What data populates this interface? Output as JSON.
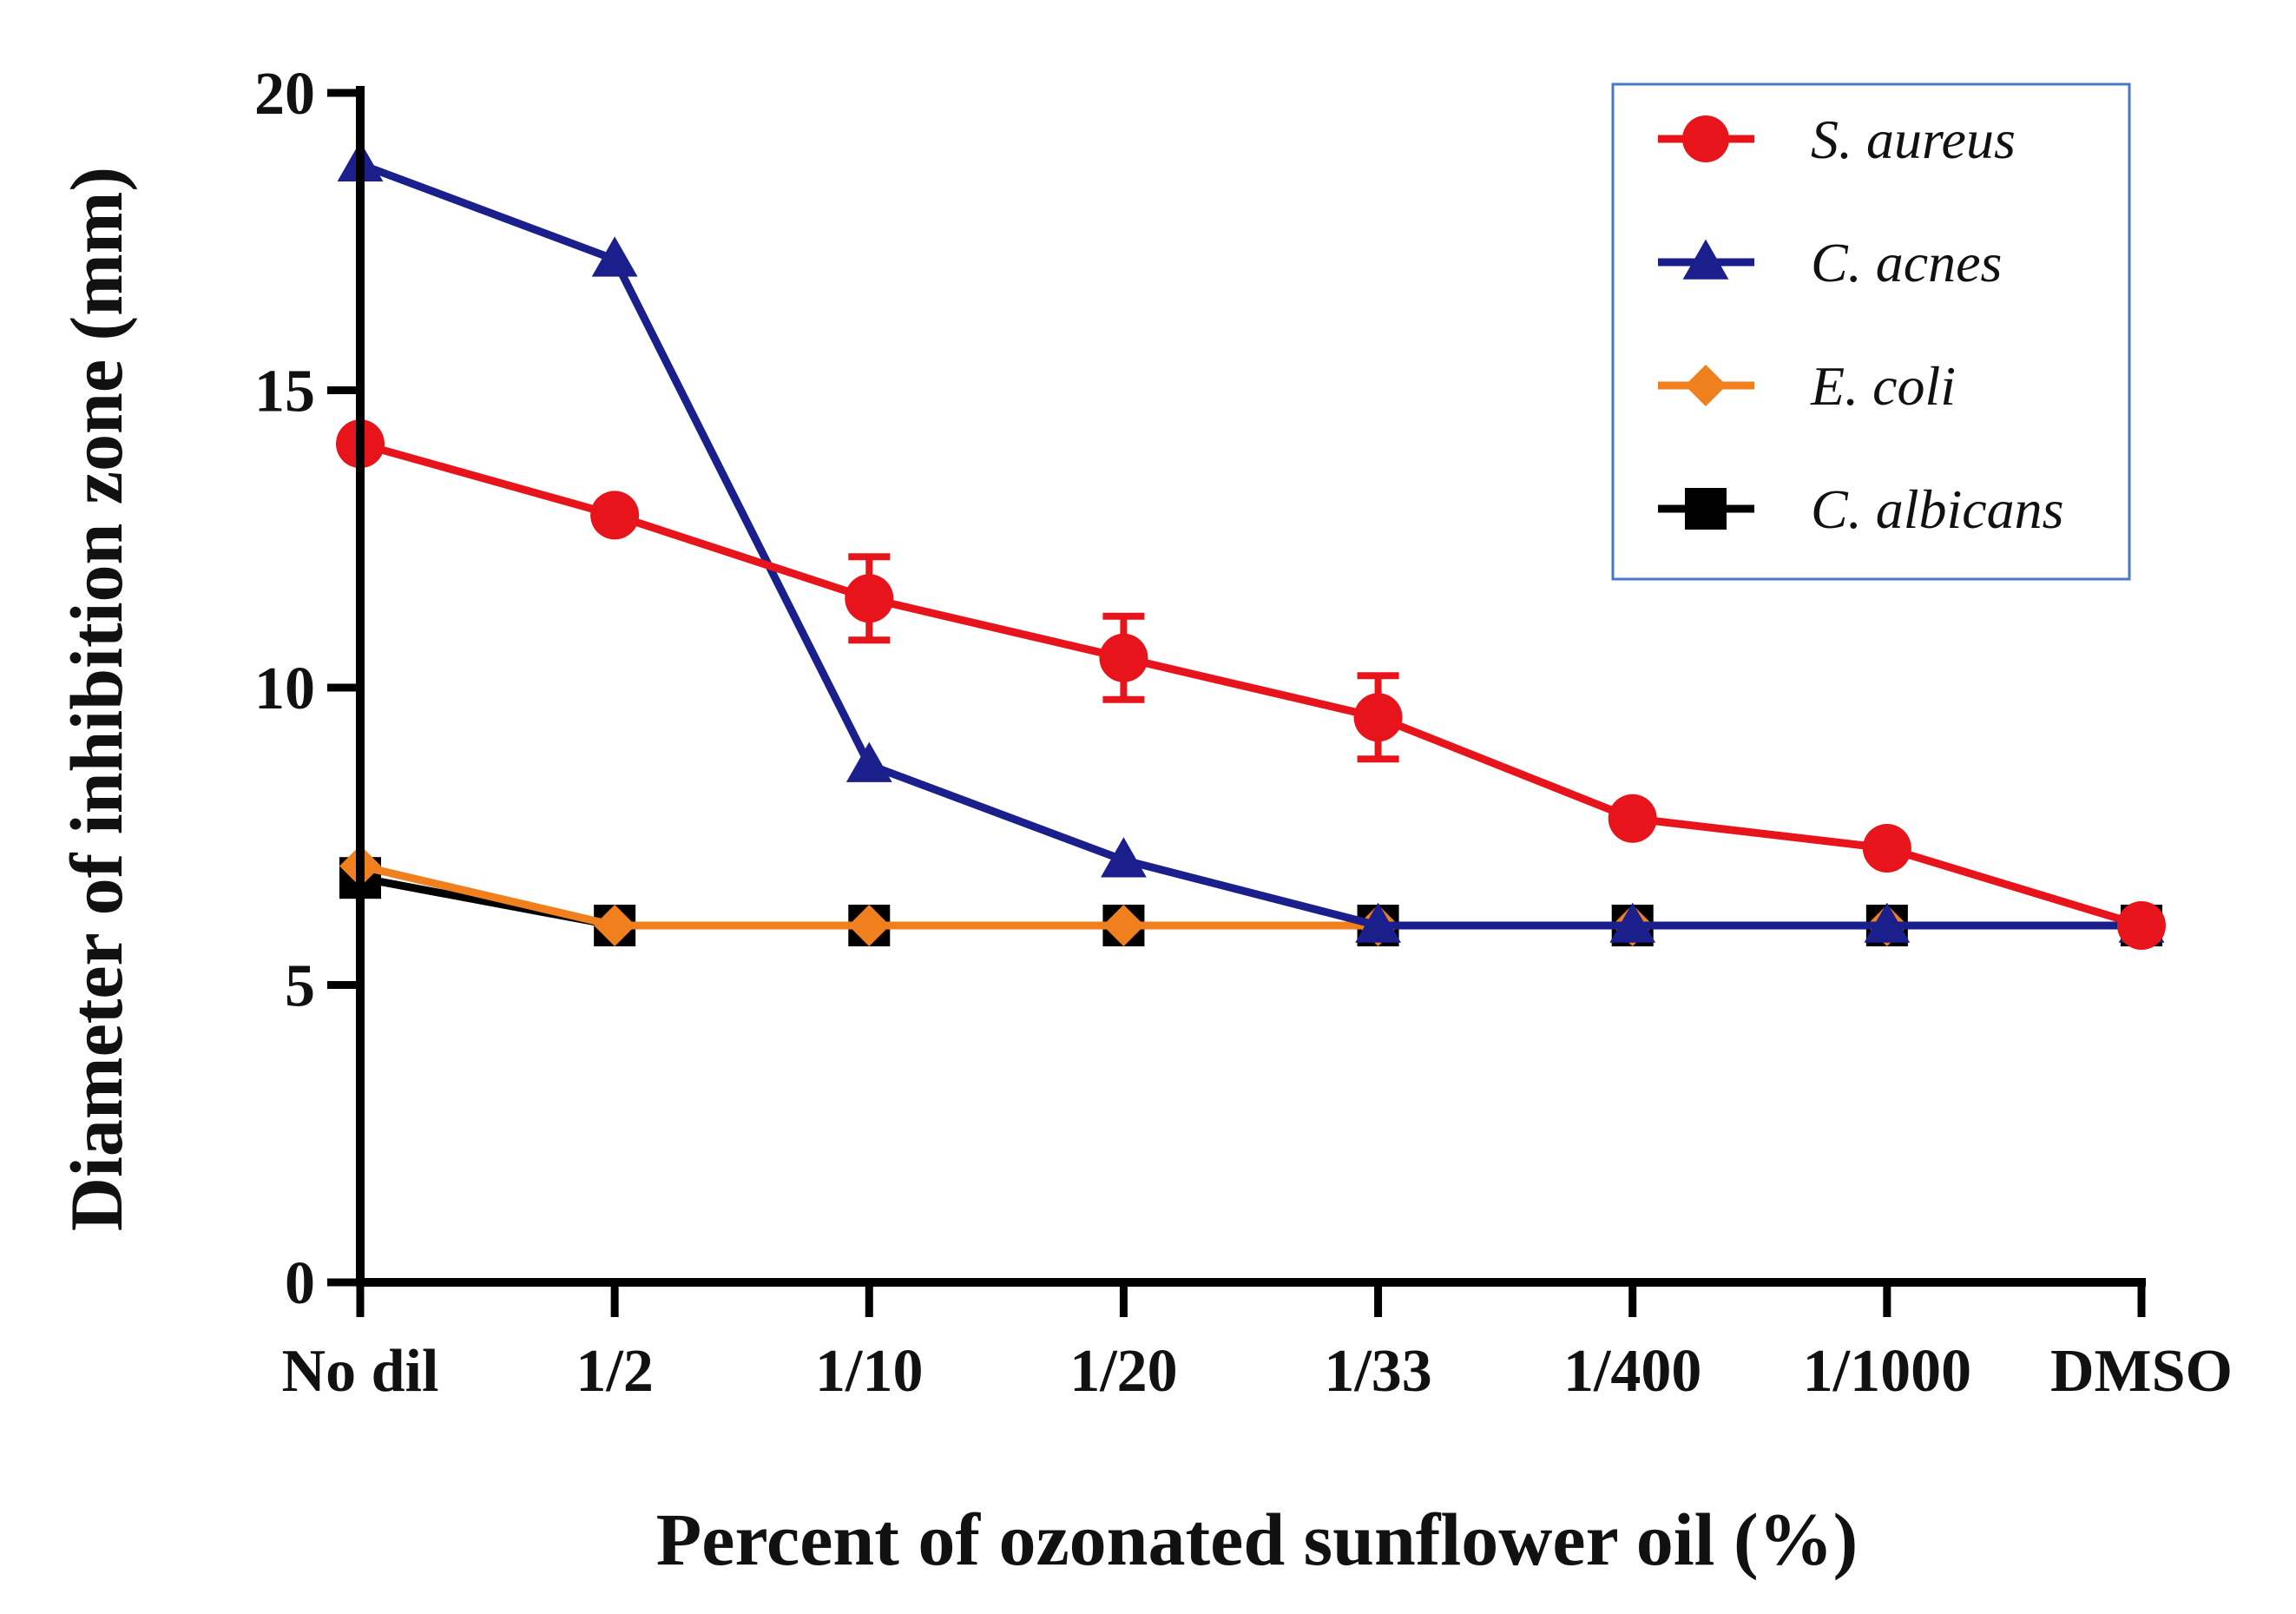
{
  "chart_data": {
    "type": "line",
    "title": "",
    "xlabel": "Percent of ozonated sunflower oil (%)",
    "ylabel": "Diameter of inhibition zone (mm)",
    "categories": [
      "No dil",
      "1/2",
      "1/10",
      "1/20",
      "1/33",
      "1/400",
      "1/1000",
      "DMSO"
    ],
    "ylim": [
      0,
      20
    ],
    "yticks": [
      0,
      5,
      10,
      15,
      20
    ],
    "grid": false,
    "legend_position": "top-right",
    "series": [
      {
        "name": "C. albicans",
        "color": "#000000",
        "marker": "square",
        "values": [
          6.8,
          6,
          6,
          6,
          6,
          6,
          6,
          6
        ],
        "errors": [
          0,
          0,
          0,
          0,
          0,
          0,
          0,
          0
        ]
      },
      {
        "name": "E. coli",
        "color": "#f07f1e",
        "marker": "diamond",
        "values": [
          7,
          6,
          6,
          6,
          6,
          6,
          6,
          6
        ],
        "errors": [
          0,
          0,
          0,
          0,
          0,
          0,
          0,
          0
        ]
      },
      {
        "name": "C. acnes",
        "color": "#1a1f8c",
        "marker": "triangle",
        "values": [
          18.8,
          17.2,
          8.7,
          7.1,
          6,
          6,
          6,
          6
        ],
        "errors": [
          0,
          0,
          0,
          0,
          0,
          0,
          0,
          0
        ]
      },
      {
        "name": "S. aureus",
        "color": "#e8141b",
        "marker": "circle",
        "values": [
          14.1,
          12.9,
          11.5,
          10.5,
          9.5,
          7.8,
          7.3,
          6
        ],
        "errors": [
          0,
          0,
          0.7,
          0.7,
          0.7,
          0,
          0,
          0
        ]
      }
    ],
    "legend_order": [
      "S. aureus",
      "C. acnes",
      "E. coli",
      "C. albicans"
    ]
  }
}
